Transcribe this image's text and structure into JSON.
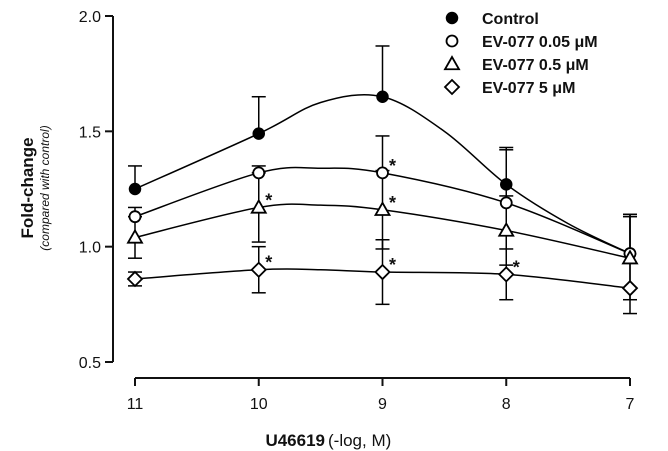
{
  "chart_data": {
    "type": "line",
    "xlabel": "U46619",
    "xlabel_unit": "(-log, M)",
    "ylabel": "Fold-change",
    "ylabel_sub": "(compared with control)",
    "x": [
      11,
      10,
      9,
      8,
      7
    ],
    "x_ticks": [
      "11",
      "10",
      "9",
      "8",
      "7"
    ],
    "xlim": [
      11.2,
      6.8
    ],
    "x_reversed": true,
    "y_ticks": [
      "0.5",
      "1.0",
      "1.5",
      "2.0"
    ],
    "ylim": [
      0.5,
      2.0
    ],
    "legend_position": "top-right",
    "grid": false,
    "series": [
      {
        "name": "Control",
        "marker": "filled-circle",
        "values": [
          1.25,
          1.49,
          1.65,
          1.27,
          0.97
        ],
        "errors": [
          0.1,
          0.16,
          0.22,
          0.16,
          0.17
        ],
        "significant": [
          false,
          false,
          false,
          false,
          false
        ],
        "curve": [
          [
            11,
            1.25
          ],
          [
            10,
            1.49
          ],
          [
            9.5,
            1.625
          ],
          [
            9,
            1.65
          ],
          [
            8.5,
            1.5
          ],
          [
            8,
            1.27
          ],
          [
            7.5,
            1.1
          ],
          [
            7,
            0.97
          ]
        ]
      },
      {
        "name": "EV-077 0.05 μM",
        "marker": "open-circle",
        "values": [
          1.13,
          1.32,
          1.32,
          1.19,
          0.97
        ],
        "errors": [
          0.04,
          0.03,
          0.16,
          0.23,
          0.17
        ],
        "significant": [
          false,
          false,
          true,
          false,
          false
        ],
        "curve": [
          [
            11,
            1.13
          ],
          [
            10,
            1.32
          ],
          [
            9.5,
            1.34
          ],
          [
            9,
            1.32
          ],
          [
            8,
            1.19
          ],
          [
            7,
            0.97
          ]
        ]
      },
      {
        "name": "EV-077 0.5 μM",
        "marker": "open-triangle",
        "values": [
          1.04,
          1.17,
          1.16,
          1.07,
          0.95
        ],
        "errors": [
          0.09,
          0.15,
          0.17,
          0.15,
          0.18
        ],
        "significant": [
          false,
          true,
          true,
          false,
          false
        ],
        "curve": [
          [
            11,
            1.04
          ],
          [
            10,
            1.17
          ],
          [
            9.5,
            1.18
          ],
          [
            9,
            1.16
          ],
          [
            8,
            1.07
          ],
          [
            7,
            0.95
          ]
        ]
      },
      {
        "name": "EV-077 5 μM",
        "marker": "open-diamond",
        "values": [
          0.86,
          0.9,
          0.89,
          0.88,
          0.82
        ],
        "errors": [
          0.03,
          0.1,
          0.14,
          0.11,
          0.11
        ],
        "significant": [
          false,
          true,
          true,
          true,
          false
        ],
        "curve": [
          [
            11,
            0.86
          ],
          [
            10,
            0.9
          ],
          [
            9.5,
            0.9
          ],
          [
            9,
            0.89
          ],
          [
            8,
            0.88
          ],
          [
            7,
            0.82
          ]
        ]
      }
    ],
    "significance_marker": "*"
  }
}
